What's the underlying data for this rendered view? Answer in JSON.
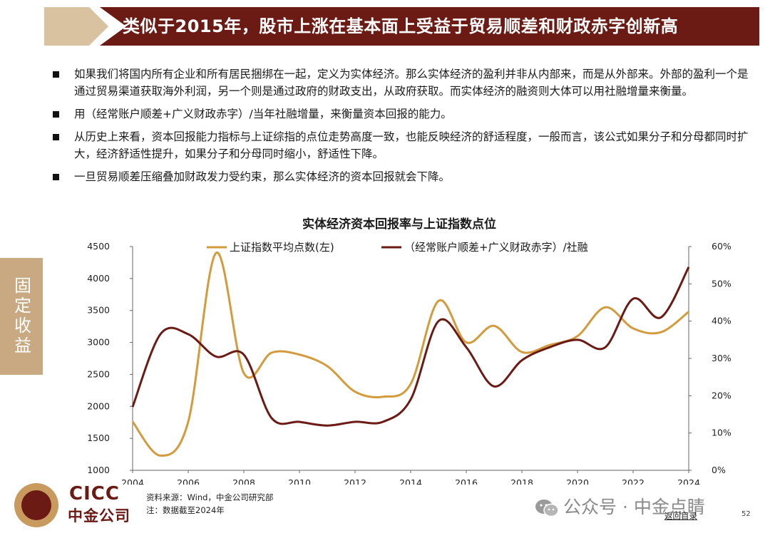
{
  "header": {
    "title": "类似于2015年，股市上涨在基本面上受益于贸易顺差和财政赤字创新高"
  },
  "bullets": [
    "如果我们将国内所有企业和所有居民捆绑在一起，定义为实体经济。那么实体经济的盈利并非从内部来，而是从外部来。外部的盈利一个是通过贸易渠道获取海外利润，另一个则是通过政府的财政支出，从政府获取。而实体经济的融资则大体可以用社融增量来衡量。",
    "用（经常账户顺差+广义财政赤字）/当年社融增量，来衡量资本回报的能力。",
    "从历史上来看，资本回报能力指标与上证综指的点位走势高度一致，也能反映经济的舒适程度，一般而言，该公式如果分子和分母都同时扩大，经济舒适性提升，如果分子和分母同时缩小，舒适性下降。",
    "一旦贸易顺差压缩叠加财政发力受约束，那么实体经济的资本回报就会下降。"
  ],
  "side_tab": {
    "label": "固定收益"
  },
  "chart_data": {
    "type": "line",
    "title": "实体经济资本回报率与上证指数点位",
    "x": [
      2004,
      2005,
      2006,
      2007,
      2008,
      2009,
      2010,
      2011,
      2012,
      2013,
      2014,
      2015,
      2016,
      2017,
      2018,
      2019,
      2020,
      2021,
      2022,
      2023,
      2024
    ],
    "x_ticks": [
      "2004",
      "2006",
      "2008",
      "2010",
      "2012",
      "2014",
      "2016",
      "2018",
      "2020",
      "2022",
      "2024"
    ],
    "y_left_ticks": [
      "1000",
      "1500",
      "2000",
      "2500",
      "3000",
      "3500",
      "4000",
      "4500"
    ],
    "y_right_ticks": [
      "0%",
      "10%",
      "20%",
      "30%",
      "40%",
      "50%",
      "60%"
    ],
    "ylim_left": [
      1000,
      4500
    ],
    "ylim_right": [
      0,
      60
    ],
    "grid": false,
    "legend_position": "top",
    "series": [
      {
        "name": "上证指数平均点数(左)",
        "axis": "left",
        "color": "#d39b3c",
        "values": [
          1760,
          1230,
          1760,
          4400,
          2520,
          2840,
          2810,
          2630,
          2230,
          2150,
          2350,
          3650,
          3000,
          3260,
          2850,
          2960,
          3100,
          3550,
          3220,
          3160,
          3480
        ]
      },
      {
        "name": "（经常账户顺差+广义财政赤字）/社融",
        "axis": "right",
        "color": "#6b1a14",
        "values": [
          17,
          36.5,
          36.5,
          30.5,
          31,
          14,
          13,
          12,
          13,
          13,
          19,
          40,
          33,
          22.5,
          29.5,
          33,
          35,
          33,
          46,
          41,
          54.5
        ]
      }
    ]
  },
  "footer": {
    "logo_en": "CICC",
    "logo_cn": "中金公司",
    "source": "资料来源：Wind，中金公司研究部",
    "note": "注：数据截至2024年",
    "watermark": "公众号 · 中金点睛",
    "back_link": "返回目录",
    "page_number": "52"
  }
}
